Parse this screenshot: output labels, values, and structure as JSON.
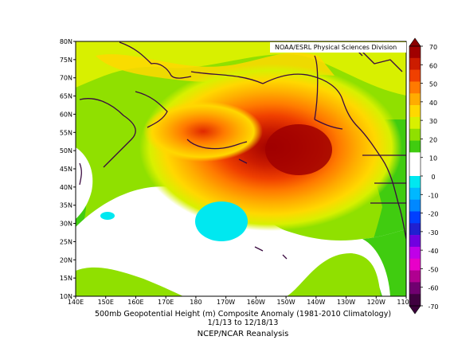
{
  "map": {
    "credit": "NOAA/ESRL Physical Sciences Division",
    "lat_labels": [
      "80N",
      "75N",
      "70N",
      "65N",
      "60N",
      "55N",
      "50N",
      "45N",
      "40N",
      "35N",
      "30N",
      "25N",
      "20N",
      "15N",
      "10N"
    ],
    "lon_labels": [
      "140E",
      "150E",
      "160E",
      "170E",
      "180",
      "170W",
      "160W",
      "150W",
      "140W",
      "130W",
      "120W",
      "110W"
    ],
    "lat_range": [
      10,
      80
    ],
    "lon_range": [
      140,
      250
    ],
    "anomaly_field": {
      "units": "m",
      "max_center": {
        "lat": 50,
        "lon": 208,
        "value": 70
      },
      "secondary_center": {
        "lat": 55,
        "lon": 188,
        "value": 55
      },
      "negative_center": {
        "lat": 30,
        "lon": 174,
        "value": -15
      }
    }
  },
  "colorbar": {
    "levels": [
      "70",
      "60",
      "50",
      "40",
      "30",
      "20",
      "10",
      "0",
      "-10",
      "-20",
      "-30",
      "-40",
      "-50",
      "-60",
      "-70"
    ],
    "colors": [
      "#a00000",
      "#cc1c00",
      "#f04000",
      "#ff7a00",
      "#ffac00",
      "#ffd800",
      "#d8f000",
      "#90e000",
      "#40cc10",
      "#ffffff",
      "#ffffff",
      "#00e8f0",
      "#00b8ff",
      "#0088ff",
      "#0040ff",
      "#2020d0",
      "#7000e0",
      "#c000e8",
      "#e800c8",
      "#b00090",
      "#700070",
      "#400040"
    ]
  },
  "captions": {
    "line1": "500mb Geopotential Height (m) Composite Anomaly (1981-2010 Climatology)",
    "line2": "1/1/13  to 12/18/13",
    "line3": "NCEP/NCAR Reanalysis"
  }
}
